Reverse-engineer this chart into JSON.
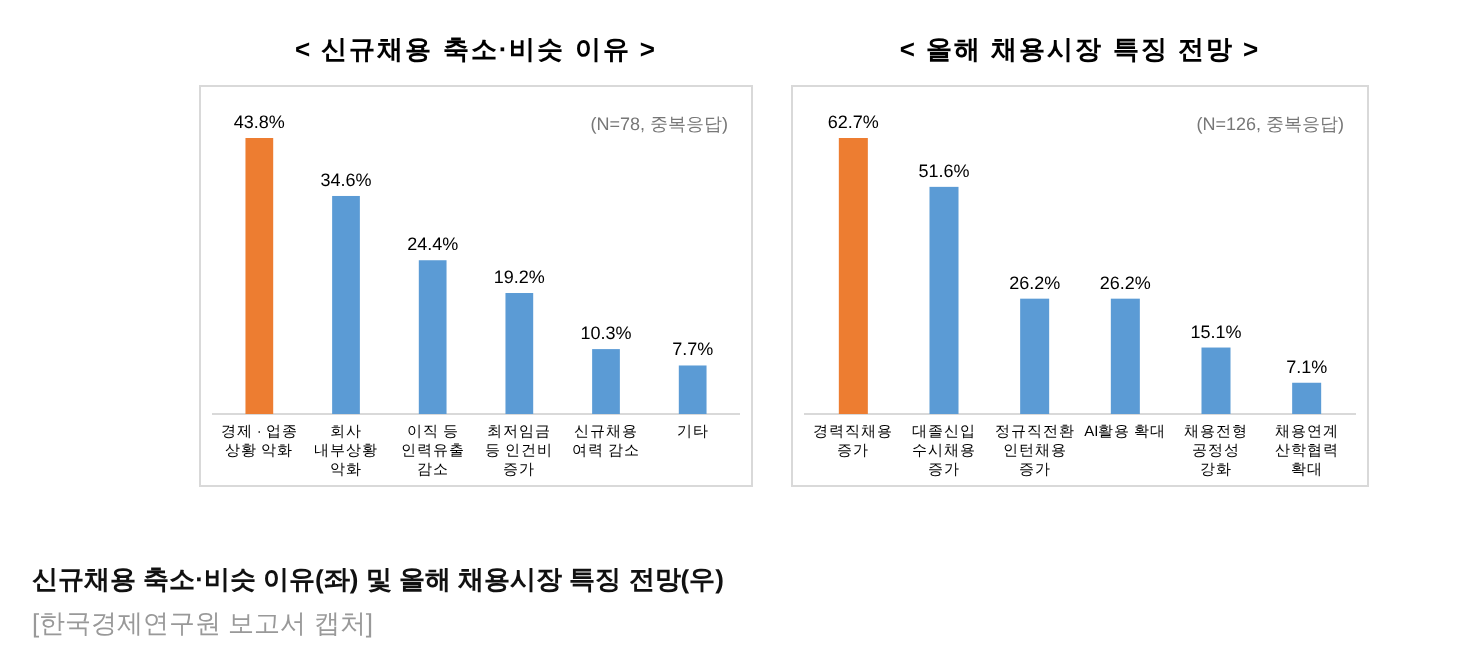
{
  "chart_data": [
    {
      "type": "bar",
      "title": "< 신규채용 축소·비슷 이유 >",
      "categories": [
        "경제 · 업종 상황 악화",
        "회사 내부상황 악화",
        "이직 등 인력유출 감소",
        "최저임금 등 인건비 증가",
        "신규채용 여력 감소",
        "기타"
      ],
      "values": [
        43.8,
        34.6,
        24.4,
        19.2,
        10.3,
        7.7
      ],
      "colors": [
        "#ed7d31",
        "#5b9bd5",
        "#5b9bd5",
        "#5b9bd5",
        "#5b9bd5",
        "#5b9bd5"
      ],
      "value_labels": [
        "43.8%",
        "34.6%",
        "24.4%",
        "19.2%",
        "10.3%",
        "7.7%"
      ],
      "annotations": [
        "(N=78, 중복응답)",
        "신규채용 축소·비슷 이유(좌) 및 올해 채용시장 특징 전망(우)",
        "[한국경제연구원 보고서 캡처]"
      ]
    },
    {
      "type": "bar",
      "title": "< 올해 채용시장 특징 전망 >",
      "categories": [
        "경력직채용 증가",
        "대졸신입 수시채용 증가",
        "정규직전환 인턴채용 증가",
        "AI활용 확대",
        "채용전형 공정성 강화",
        "채용연계 산학협력 확대"
      ],
      "values": [
        62.7,
        51.6,
        26.2,
        26.2,
        15.1,
        7.1
      ],
      "colors": [
        "#ed7d31",
        "#5b9bd5",
        "#5b9bd5",
        "#5b9bd5",
        "#5b9bd5",
        "#5b9bd5"
      ],
      "value_labels": [
        "62.7%",
        "51.6%",
        "26.2%",
        "26.2%",
        "15.1%",
        "7.1%"
      ],
      "annotations": [
        "(N=126, 중복응답)"
      ]
    }
  ]
}
